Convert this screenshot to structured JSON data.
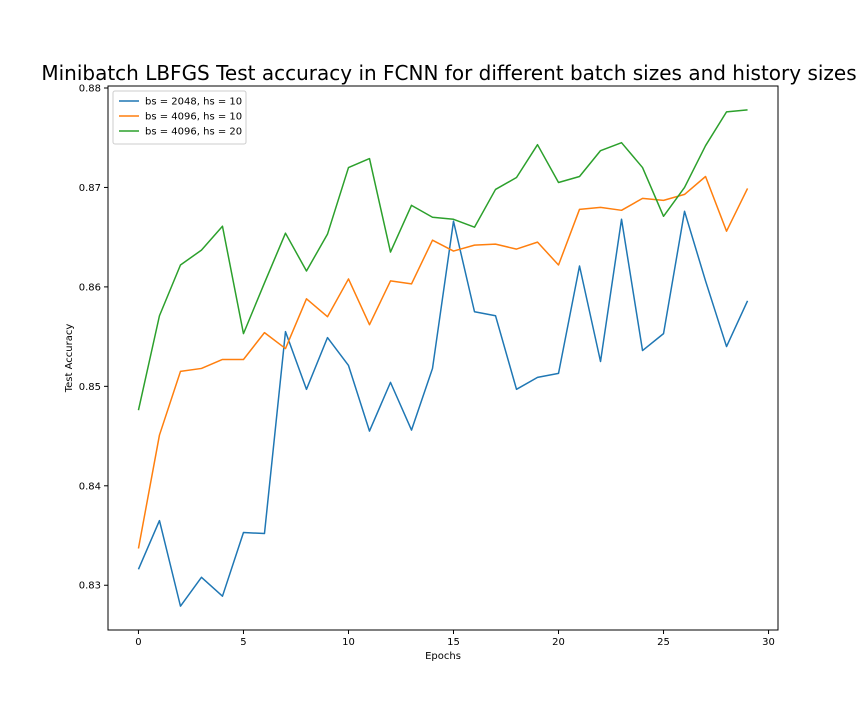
{
  "chart_data": {
    "type": "line",
    "title": "Minibatch LBFGS Test accuracy in FCNN for different batch sizes and history sizes",
    "xlabel": "Epochs",
    "ylabel": "Test Accuracy",
    "xlim": [
      -1.45,
      30.45
    ],
    "ylim": [
      0.8255,
      0.8802
    ],
    "xticks": [
      0,
      5,
      10,
      15,
      20,
      25,
      30
    ],
    "yticks": [
      0.83,
      0.84,
      0.85,
      0.86,
      0.87,
      0.88
    ],
    "xtick_labels": [
      "0",
      "5",
      "10",
      "15",
      "20",
      "25",
      "30"
    ],
    "ytick_labels": [
      "0.83",
      "0.84",
      "0.85",
      "0.86",
      "0.87",
      "0.88"
    ],
    "grid": false,
    "legend_position": "top-left",
    "x": [
      0,
      1,
      2,
      3,
      4,
      5,
      6,
      7,
      8,
      9,
      10,
      11,
      12,
      13,
      14,
      15,
      16,
      17,
      18,
      19,
      20,
      21,
      22,
      23,
      24,
      25,
      26,
      27,
      28,
      29
    ],
    "series": [
      {
        "name": "bs = 2048, hs = 10",
        "color": "#1f77b4",
        "values": [
          0.8316,
          0.8365,
          0.8279,
          0.8308,
          0.8289,
          0.8353,
          0.8352,
          0.8555,
          0.8497,
          0.8549,
          0.8521,
          0.8455,
          0.8504,
          0.8456,
          0.8518,
          0.8666,
          0.8575,
          0.8571,
          0.8497,
          0.8509,
          0.8513,
          0.8621,
          0.8525,
          0.8668,
          0.8536,
          0.8553,
          0.8676,
          0.8606,
          0.854,
          0.8586
        ]
      },
      {
        "name": "bs = 4096, hs = 10",
        "color": "#ff7f0e",
        "values": [
          0.8337,
          0.8451,
          0.8515,
          0.8518,
          0.8527,
          0.8527,
          0.8554,
          0.8538,
          0.8588,
          0.857,
          0.8608,
          0.8562,
          0.8606,
          0.8603,
          0.8647,
          0.8636,
          0.8642,
          0.8643,
          0.8638,
          0.8645,
          0.8622,
          0.8678,
          0.868,
          0.8677,
          0.8689,
          0.8687,
          0.8693,
          0.8711,
          0.8656,
          0.8699
        ]
      },
      {
        "name": "bs = 4096, hs = 20",
        "color": "#2ca02c",
        "values": [
          0.8476,
          0.8571,
          0.8622,
          0.8637,
          0.8661,
          0.8553,
          0.8604,
          0.8654,
          0.8616,
          0.8653,
          0.872,
          0.8729,
          0.8635,
          0.8682,
          0.867,
          0.8668,
          0.866,
          0.8698,
          0.871,
          0.8743,
          0.8705,
          0.8711,
          0.8737,
          0.8745,
          0.872,
          0.8671,
          0.87,
          0.8742,
          0.8776,
          0.8778
        ]
      }
    ]
  }
}
